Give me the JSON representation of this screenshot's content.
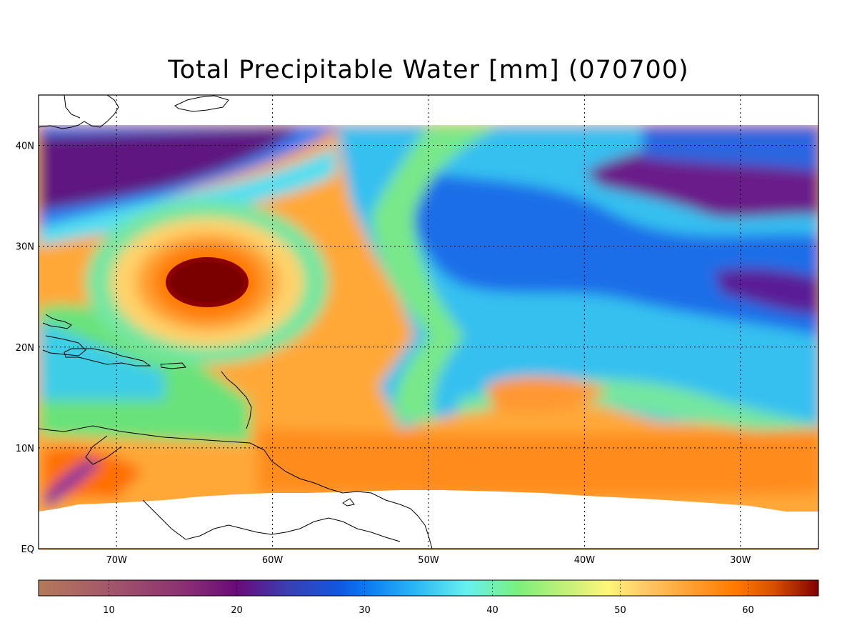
{
  "title": "Total Precipitable Water [mm]  (070700)",
  "map": {
    "lon_range": [
      -75,
      -25
    ],
    "lat_range": [
      0,
      45
    ],
    "data_lat_range": [
      5,
      42
    ],
    "lon_ticks": [
      {
        "value": -70,
        "label": "70W"
      },
      {
        "value": -60,
        "label": "60W"
      },
      {
        "value": -50,
        "label": "50W"
      },
      {
        "value": -40,
        "label": "40W"
      },
      {
        "value": -30,
        "label": "30W"
      }
    ],
    "lat_ticks": [
      {
        "value": 0,
        "label": "EQ"
      },
      {
        "value": 10,
        "label": "10N"
      },
      {
        "value": 20,
        "label": "20N"
      },
      {
        "value": 30,
        "label": "30N"
      },
      {
        "value": 40,
        "label": "40N"
      }
    ],
    "gridlines": "dotted",
    "features": {
      "hurricane_center": {
        "lon": -64,
        "lat": 26.5,
        "value_mm": 65
      },
      "moist_core_value_mm": 65,
      "dry_band_value_mm": 20
    }
  },
  "colorbar": {
    "range": [
      4.5,
      65.5
    ],
    "ticks": [
      {
        "value": 10,
        "label": "10"
      },
      {
        "value": 20,
        "label": "20"
      },
      {
        "value": 30,
        "label": "30"
      },
      {
        "value": 40,
        "label": "40"
      },
      {
        "value": 50,
        "label": "50"
      },
      {
        "value": 60,
        "label": "60"
      }
    ],
    "stops": [
      {
        "value": 4.5,
        "color": "#b47a5a"
      },
      {
        "value": 10,
        "color": "#a4576a"
      },
      {
        "value": 16,
        "color": "#8a2f73"
      },
      {
        "value": 20,
        "color": "#6a0a7a"
      },
      {
        "value": 24,
        "color": "#3a3fb2"
      },
      {
        "value": 28,
        "color": "#1257e0"
      },
      {
        "value": 30,
        "color": "#0a78f2"
      },
      {
        "value": 34,
        "color": "#2cb7f5"
      },
      {
        "value": 38,
        "color": "#69f0f0"
      },
      {
        "value": 42,
        "color": "#7bf07b"
      },
      {
        "value": 46,
        "color": "#c8f07a"
      },
      {
        "value": 49,
        "color": "#fff57a"
      },
      {
        "value": 52,
        "color": "#ffc768"
      },
      {
        "value": 56,
        "color": "#ff9a2a"
      },
      {
        "value": 59,
        "color": "#ff7a00"
      },
      {
        "value": 62,
        "color": "#d85000"
      },
      {
        "value": 65.5,
        "color": "#820000"
      }
    ]
  }
}
